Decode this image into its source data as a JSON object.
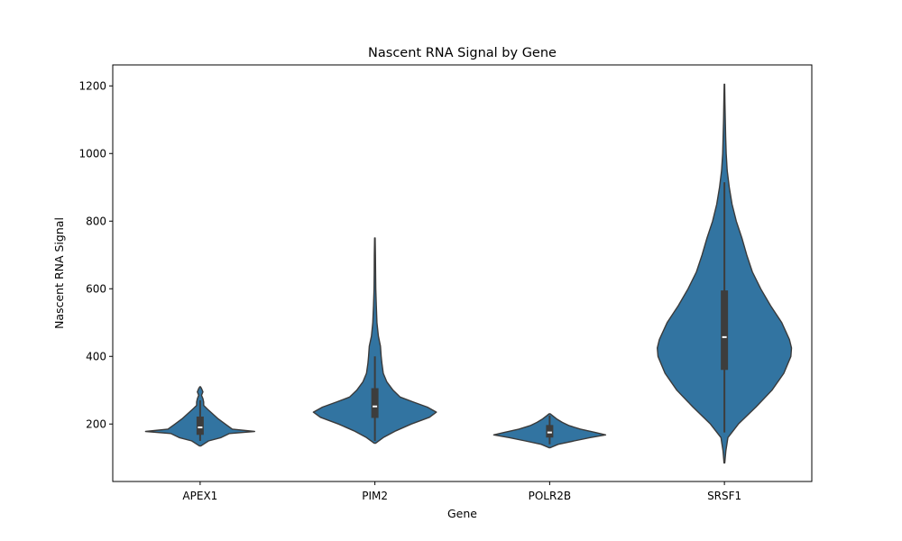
{
  "chart_data": {
    "type": "violin",
    "title": "Nascent RNA Signal by Gene",
    "xlabel": "Gene",
    "ylabel": "Nascent RNA Signal",
    "ylim": [
      30,
      1262
    ],
    "yticks": [
      200,
      400,
      600,
      800,
      1000,
      1200
    ],
    "categories": [
      "APEX1",
      "PIM2",
      "POLR2B",
      "SRSF1"
    ],
    "colors": {
      "violin_fill": "#3274a1",
      "edge": "#3a3a3a",
      "box": "#3d3d3d",
      "median": "#ffffff"
    },
    "violins": [
      {
        "category": "APEX1",
        "min": 135,
        "q1": 168,
        "median": 190,
        "q3": 222,
        "max": 310,
        "whisker_low": 150,
        "whisker_high": 270,
        "density": [
          [
            135,
            0.01
          ],
          [
            150,
            0.12
          ],
          [
            160,
            0.3
          ],
          [
            172,
            0.42
          ],
          [
            178,
            0.78
          ],
          [
            185,
            0.46
          ],
          [
            200,
            0.36
          ],
          [
            215,
            0.26
          ],
          [
            230,
            0.18
          ],
          [
            245,
            0.1
          ],
          [
            255,
            0.05
          ],
          [
            265,
            0.05
          ],
          [
            275,
            0.04
          ],
          [
            285,
            0.02
          ],
          [
            295,
            0.04
          ],
          [
            305,
            0.02
          ],
          [
            310,
            0.005
          ]
        ]
      },
      {
        "category": "PIM2",
        "min": 143,
        "q1": 218,
        "median": 252,
        "q3": 306,
        "max": 750,
        "whisker_low": 150,
        "whisker_high": 400,
        "density": [
          [
            143,
            0.01
          ],
          [
            160,
            0.12
          ],
          [
            180,
            0.3
          ],
          [
            200,
            0.52
          ],
          [
            220,
            0.78
          ],
          [
            235,
            0.88
          ],
          [
            250,
            0.75
          ],
          [
            265,
            0.55
          ],
          [
            280,
            0.36
          ],
          [
            300,
            0.26
          ],
          [
            325,
            0.17
          ],
          [
            350,
            0.12
          ],
          [
            380,
            0.1
          ],
          [
            400,
            0.09
          ],
          [
            430,
            0.08
          ],
          [
            460,
            0.05
          ],
          [
            500,
            0.03
          ],
          [
            550,
            0.02
          ],
          [
            600,
            0.012
          ],
          [
            650,
            0.01
          ],
          [
            700,
            0.008
          ],
          [
            750,
            0.004
          ]
        ]
      },
      {
        "category": "POLR2B",
        "min": 130,
        "q1": 160,
        "median": 175,
        "q3": 197,
        "max": 230,
        "whisker_low": 140,
        "whisker_high": 225,
        "density": [
          [
            130,
            0.01
          ],
          [
            140,
            0.12
          ],
          [
            150,
            0.35
          ],
          [
            160,
            0.58
          ],
          [
            168,
            0.8
          ],
          [
            175,
            0.65
          ],
          [
            185,
            0.44
          ],
          [
            195,
            0.28
          ],
          [
            205,
            0.18
          ],
          [
            215,
            0.1
          ],
          [
            225,
            0.04
          ],
          [
            230,
            0.01
          ]
        ]
      },
      {
        "category": "SRSF1",
        "min": 85,
        "q1": 360,
        "median": 457,
        "q3": 595,
        "max": 1205,
        "whisker_low": 175,
        "whisker_high": 915,
        "density": [
          [
            85,
            0.005
          ],
          [
            120,
            0.02
          ],
          [
            160,
            0.05
          ],
          [
            200,
            0.2
          ],
          [
            250,
            0.45
          ],
          [
            300,
            0.68
          ],
          [
            350,
            0.85
          ],
          [
            400,
            0.95
          ],
          [
            425,
            0.96
          ],
          [
            450,
            0.93
          ],
          [
            500,
            0.82
          ],
          [
            550,
            0.66
          ],
          [
            600,
            0.52
          ],
          [
            650,
            0.4
          ],
          [
            700,
            0.32
          ],
          [
            750,
            0.25
          ],
          [
            800,
            0.17
          ],
          [
            850,
            0.11
          ],
          [
            900,
            0.07
          ],
          [
            950,
            0.04
          ],
          [
            1000,
            0.025
          ],
          [
            1050,
            0.018
          ],
          [
            1100,
            0.012
          ],
          [
            1150,
            0.008
          ],
          [
            1205,
            0.003
          ]
        ]
      }
    ]
  }
}
